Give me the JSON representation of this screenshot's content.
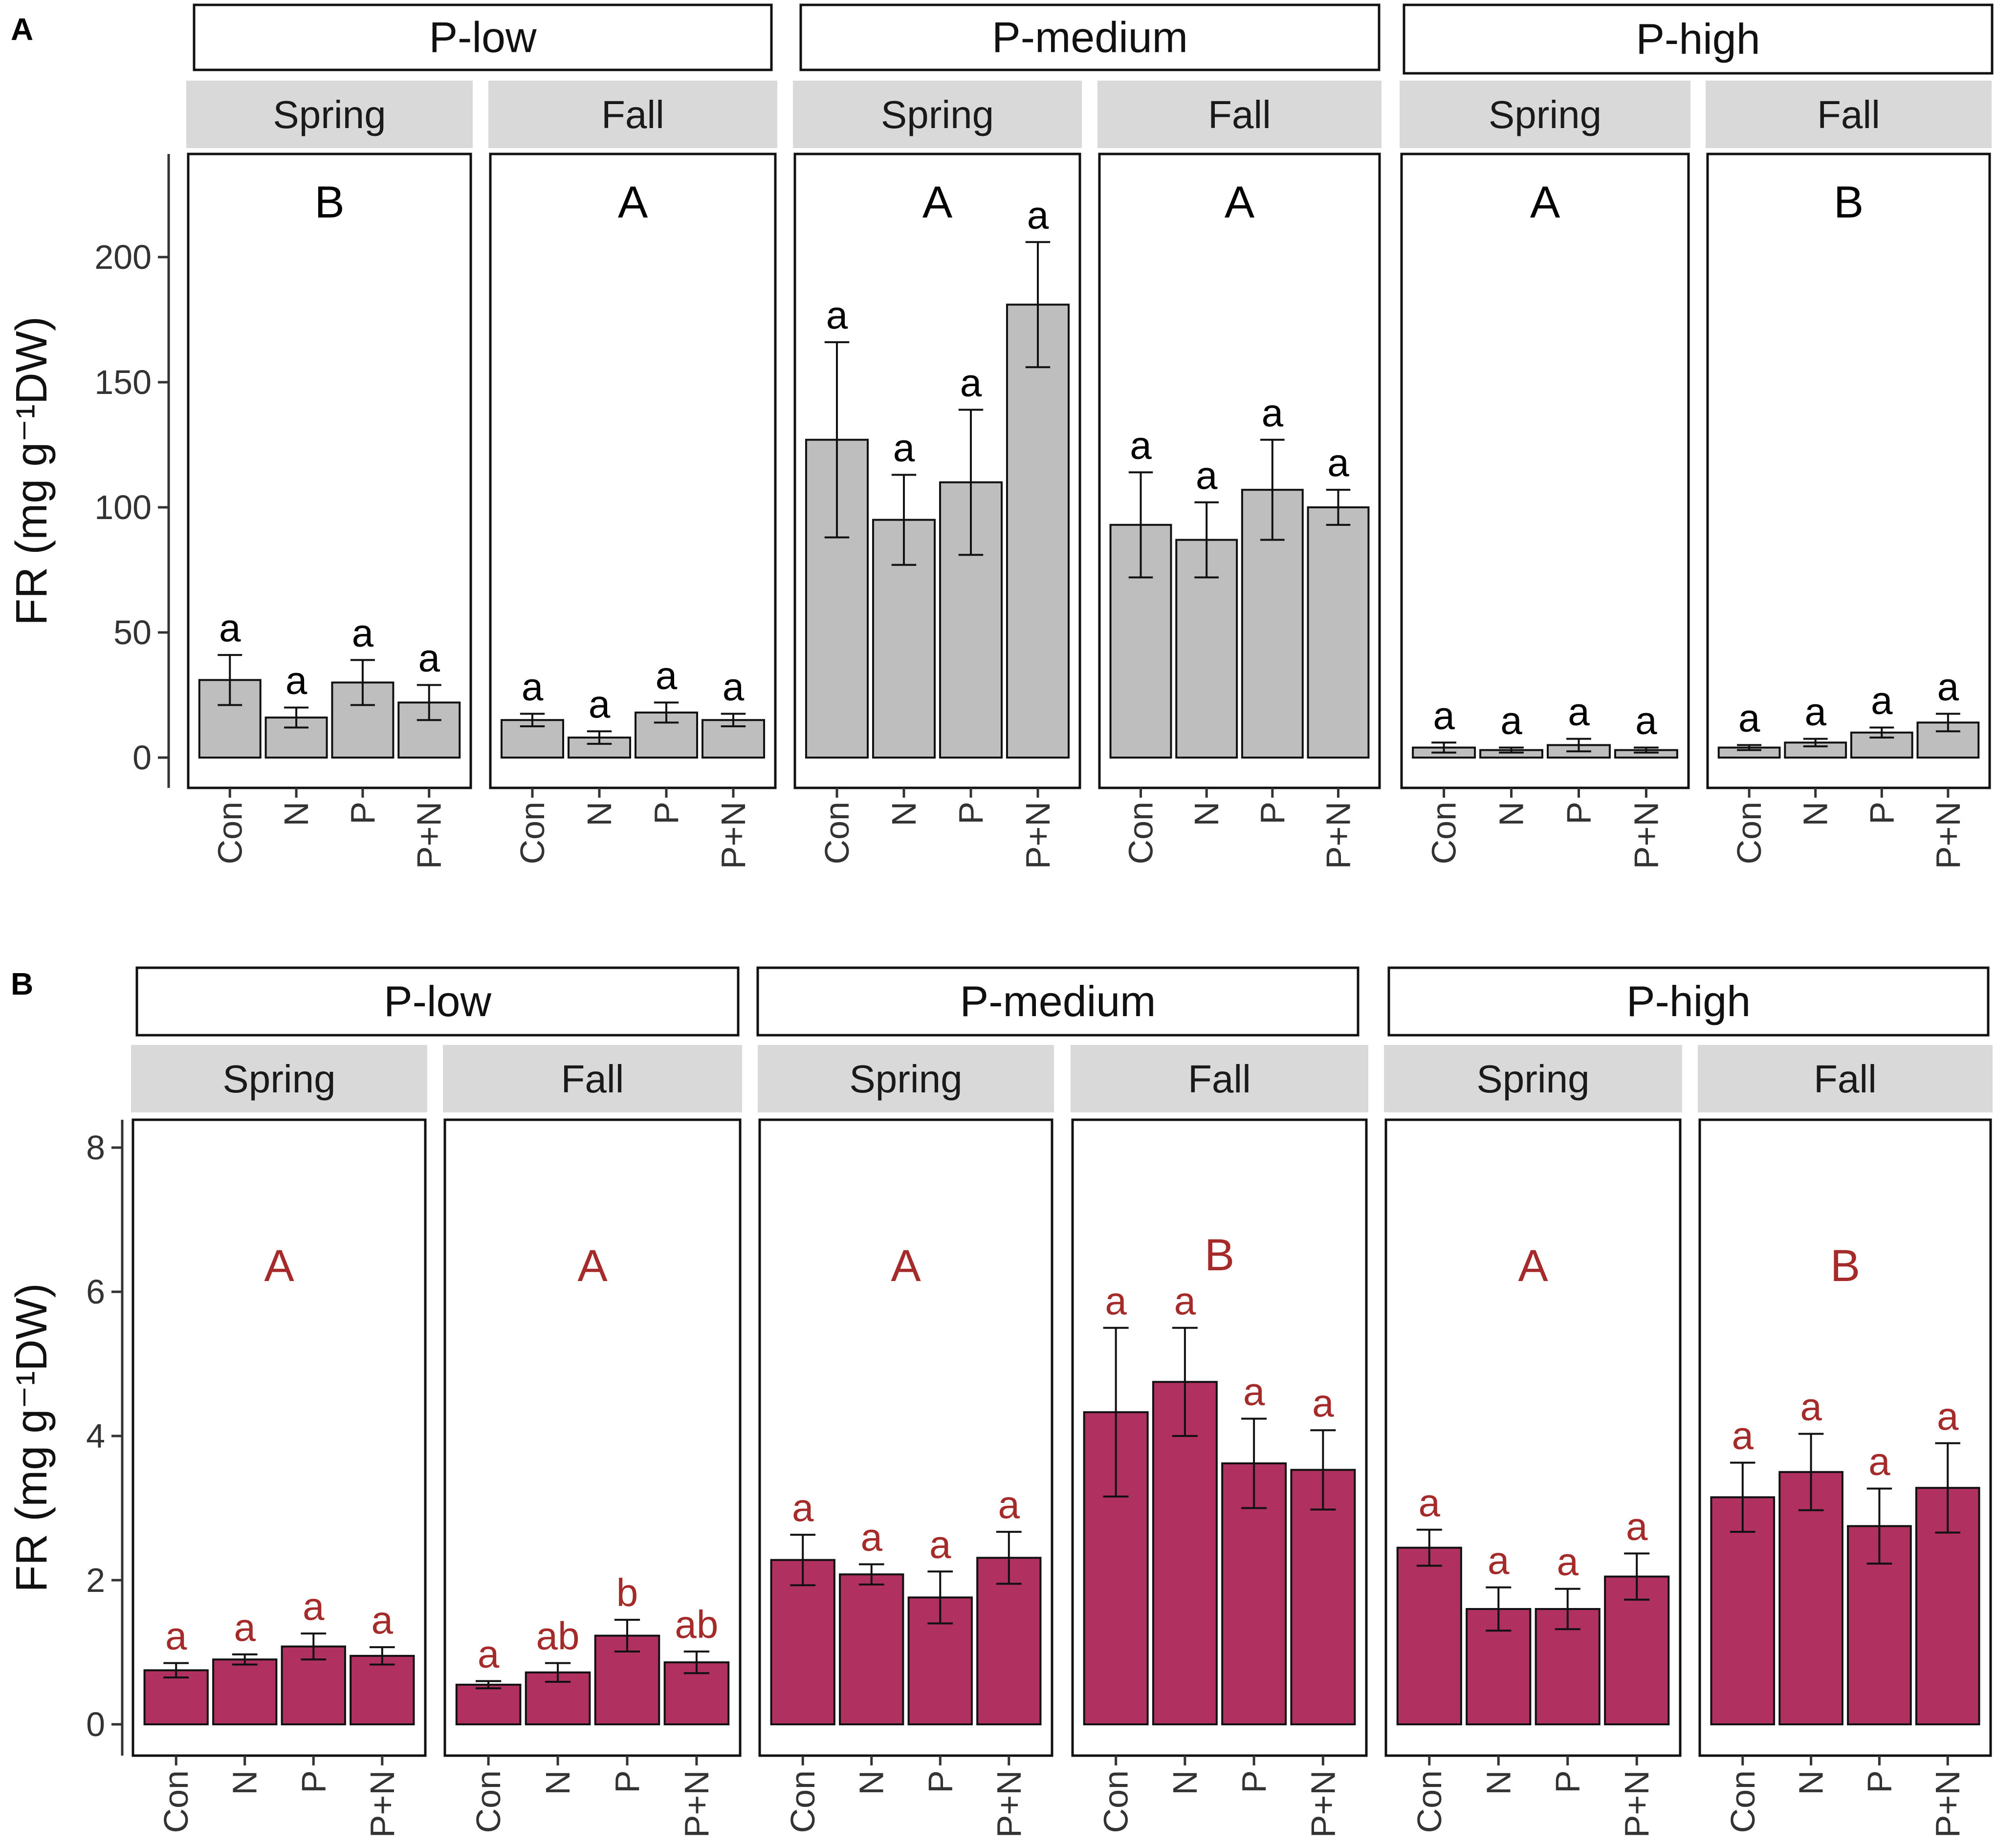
{
  "chart_data": [
    {
      "type": "bar",
      "panel_label": "A",
      "ylabel": "FR (mg g⁻¹DW)",
      "ylim": [
        -10,
        240
      ],
      "yticks": [
        0,
        50,
        100,
        150,
        200
      ],
      "categories": [
        "Con",
        "N",
        "P",
        "P+N"
      ],
      "bar_color": "#bebebe",
      "letter_color": "#000000",
      "groups": [
        {
          "label": "P-low",
          "facets": [
            {
              "season": "Spring",
              "group_letter": "B",
              "values": [
                31,
                16,
                30,
                22
              ],
              "errors": [
                10,
                4,
                9,
                7
              ],
              "letters": [
                "a",
                "a",
                "a",
                "a"
              ]
            },
            {
              "season": "Fall",
              "group_letter": "A",
              "values": [
                15,
                8,
                18,
                15
              ],
              "errors": [
                2.5,
                2.5,
                4,
                2.5
              ],
              "letters": [
                "a",
                "a",
                "a",
                "a"
              ]
            }
          ]
        },
        {
          "label": "P-medium",
          "facets": [
            {
              "season": "Spring",
              "group_letter": "A",
              "values": [
                127,
                95,
                110,
                181
              ],
              "errors": [
                39,
                18,
                29,
                25
              ],
              "letters": [
                "a",
                "a",
                "a",
                "a"
              ]
            },
            {
              "season": "Fall",
              "group_letter": "A",
              "values": [
                93,
                87,
                107,
                100
              ],
              "errors": [
                21,
                15,
                20,
                7
              ],
              "letters": [
                "a",
                "a",
                "a",
                "a"
              ]
            }
          ]
        },
        {
          "label": "P-high",
          "facets": [
            {
              "season": "Spring",
              "group_letter": "A",
              "values": [
                4,
                3,
                5,
                3
              ],
              "errors": [
                2,
                1,
                2.5,
                1
              ],
              "letters": [
                "a",
                "a",
                "a",
                "a"
              ]
            },
            {
              "season": "Fall",
              "group_letter": "B",
              "values": [
                4,
                6,
                10,
                14
              ],
              "errors": [
                1,
                1.5,
                2,
                3.5
              ],
              "letters": [
                "a",
                "a",
                "a",
                "a"
              ]
            }
          ]
        }
      ]
    },
    {
      "type": "bar",
      "panel_label": "B",
      "ylabel": "FR (mg g⁻¹DW)",
      "ylim": [
        -0.4,
        8.4
      ],
      "yticks": [
        0,
        2,
        4,
        6,
        8
      ],
      "categories": [
        "Con",
        "N",
        "P",
        "P+N"
      ],
      "bar_color": "#b03060",
      "letter_color": "#a52a2a",
      "groups": [
        {
          "label": "P-low",
          "facets": [
            {
              "season": "Spring",
              "group_letter": "A",
              "values": [
                0.75,
                0.9,
                1.08,
                0.95
              ],
              "errors": [
                0.1,
                0.07,
                0.18,
                0.12
              ],
              "letters": [
                "a",
                "a",
                "a",
                "a"
              ]
            },
            {
              "season": "Fall",
              "group_letter": "A",
              "values": [
                0.55,
                0.72,
                1.23,
                0.86
              ],
              "errors": [
                0.05,
                0.13,
                0.22,
                0.15
              ],
              "letters": [
                "a",
                "ab",
                "b",
                "ab"
              ]
            }
          ]
        },
        {
          "label": "P-medium",
          "facets": [
            {
              "season": "Spring",
              "group_letter": "A",
              "values": [
                2.28,
                2.08,
                1.76,
                2.31
              ],
              "errors": [
                0.35,
                0.14,
                0.36,
                0.36
              ],
              "letters": [
                "a",
                "a",
                "a",
                "a"
              ]
            },
            {
              "season": "Fall",
              "group_letter": "B",
              "values": [
                4.33,
                4.75,
                3.62,
                3.53
              ],
              "errors": [
                1.17,
                0.75,
                0.62,
                0.55
              ],
              "letters": [
                "a",
                "a",
                "a",
                "a"
              ]
            }
          ]
        },
        {
          "label": "P-high",
          "facets": [
            {
              "season": "Spring",
              "group_letter": "A",
              "values": [
                2.45,
                1.6,
                1.6,
                2.05
              ],
              "errors": [
                0.25,
                0.3,
                0.28,
                0.32
              ],
              "letters": [
                "a",
                "a",
                "a",
                "a"
              ]
            },
            {
              "season": "Fall",
              "group_letter": "B",
              "values": [
                3.15,
                3.5,
                2.75,
                3.28
              ],
              "errors": [
                0.48,
                0.53,
                0.52,
                0.62
              ],
              "letters": [
                "a",
                "a",
                "a",
                "a"
              ]
            }
          ]
        }
      ]
    }
  ]
}
